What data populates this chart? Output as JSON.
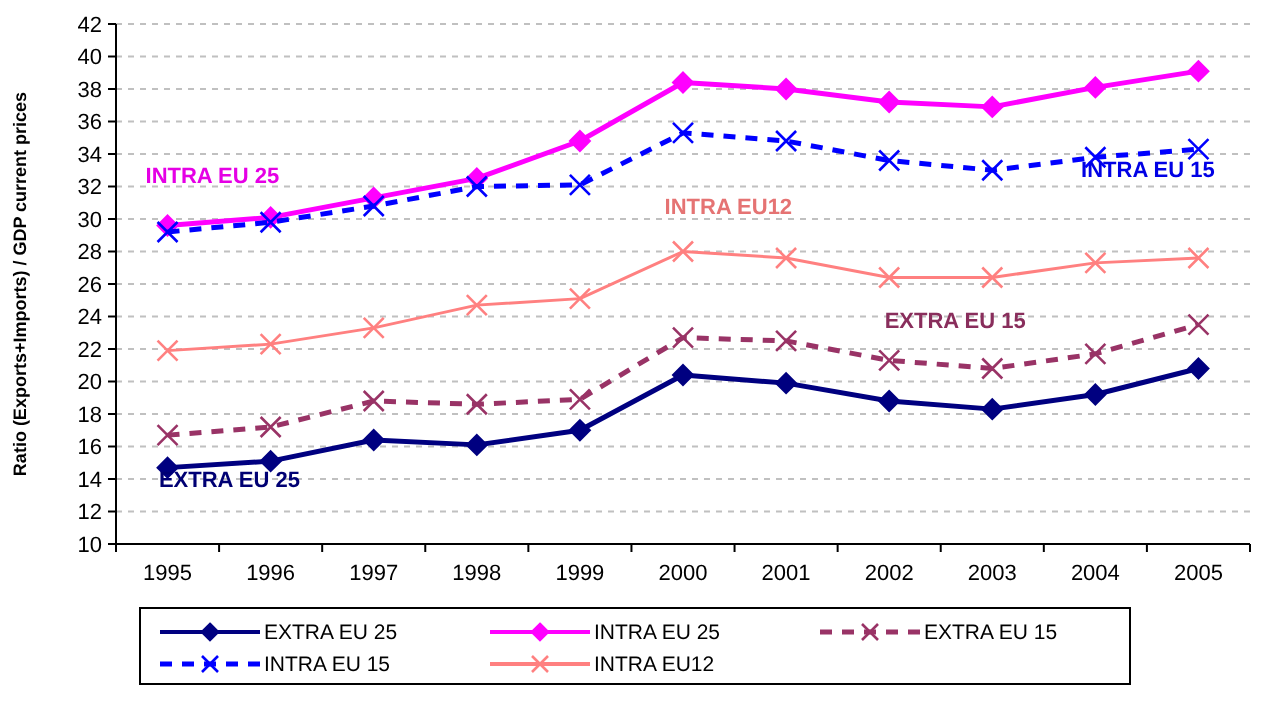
{
  "chart_data": {
    "type": "line",
    "ylabel": "Ratio (Exports+Imports) / GDP current prices",
    "categories": [
      "1995",
      "1996",
      "1997",
      "1998",
      "1999",
      "2000",
      "2001",
      "2002",
      "2003",
      "2004",
      "2005"
    ],
    "ylim": [
      10,
      42
    ],
    "yticks": [
      10,
      12,
      14,
      16,
      18,
      20,
      22,
      24,
      26,
      28,
      30,
      32,
      34,
      36,
      38,
      40,
      42
    ],
    "grid": "y",
    "legend": "bottom",
    "series": [
      {
        "name": "EXTRA EU 25",
        "color": "#000080",
        "marker": "diamond",
        "line_style": "solid",
        "values": [
          14.7,
          15.1,
          16.4,
          16.1,
          17.0,
          20.4,
          19.9,
          18.8,
          18.3,
          19.2,
          20.8
        ]
      },
      {
        "name": "INTRA EU 25",
        "color": "#ff00ff",
        "marker": "diamond",
        "line_style": "solid",
        "values": [
          29.6,
          30.1,
          31.3,
          32.5,
          34.8,
          38.4,
          38.0,
          37.2,
          36.9,
          38.1,
          39.1
        ]
      },
      {
        "name": "EXTRA EU 15",
        "color": "#993366",
        "marker": "cross",
        "line_style": "dashed",
        "values": [
          16.7,
          17.2,
          18.8,
          18.6,
          18.9,
          22.7,
          22.5,
          21.3,
          20.8,
          21.7,
          23.5
        ]
      },
      {
        "name": "INTRA EU 15",
        "color": "#0000ff",
        "marker": "cross",
        "line_style": "dashed",
        "values": [
          29.2,
          29.8,
          30.8,
          32.0,
          32.1,
          35.3,
          34.8,
          33.6,
          33.0,
          33.8,
          34.3
        ]
      },
      {
        "name": "INTRA EU12",
        "color": "#ff8080",
        "marker": "cross",
        "line_style": "solid",
        "values": [
          21.9,
          22.3,
          23.3,
          24.7,
          25.1,
          28.0,
          27.6,
          26.4,
          26.4,
          27.3,
          27.6
        ]
      }
    ],
    "annotations": [
      "EXTRA EU 25",
      "INTRA EU 25",
      "EXTRA EU 15",
      "INTRA EU 15",
      "INTRA EU12"
    ]
  }
}
